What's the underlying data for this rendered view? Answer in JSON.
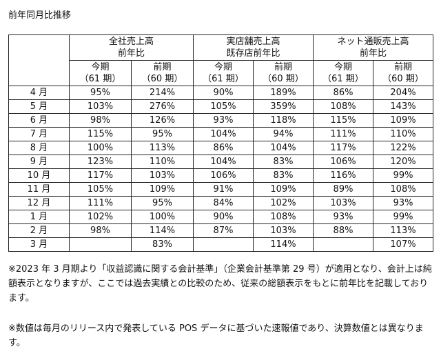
{
  "title": "前年同月比推移",
  "groups": [
    {
      "line1": "全社売上高",
      "line2": "前年比"
    },
    {
      "line1": "実店舗売上高",
      "line2": "既存店前年比"
    },
    {
      "line1": "ネット通販売上高",
      "line2": "前年比"
    }
  ],
  "sub_headers": [
    {
      "l1": "今期",
      "l2": "（61 期）"
    },
    {
      "l1": "前期",
      "l2": "（60 期）"
    },
    {
      "l1": "今期",
      "l2": "（61 期）"
    },
    {
      "l1": "前期",
      "l2": "（60 期）"
    },
    {
      "l1": "今期",
      "l2": "（61 期）"
    },
    {
      "l1": "前期",
      "l2": "（60 期）"
    }
  ],
  "rows": [
    {
      "month": "4 月",
      "values": [
        "95%",
        "214%",
        "90%",
        "189%",
        "86%",
        "204%"
      ]
    },
    {
      "month": "5 月",
      "values": [
        "103%",
        "276%",
        "105%",
        "359%",
        "108%",
        "143%"
      ]
    },
    {
      "month": "6 月",
      "values": [
        "98%",
        "126%",
        "93%",
        "118%",
        "115%",
        "109%"
      ]
    },
    {
      "month": "7 月",
      "values": [
        "115%",
        "95%",
        "104%",
        "94%",
        "111%",
        "110%"
      ]
    },
    {
      "month": "8 月",
      "values": [
        "100%",
        "113%",
        "86%",
        "104%",
        "117%",
        "122%"
      ]
    },
    {
      "month": "9 月",
      "values": [
        "123%",
        "110%",
        "104%",
        "83%",
        "106%",
        "120%"
      ]
    },
    {
      "month": "10 月",
      "values": [
        "117%",
        "103%",
        "106%",
        "83%",
        "116%",
        "99%"
      ]
    },
    {
      "month": "11 月",
      "values": [
        "105%",
        "109%",
        "91%",
        "109%",
        "89%",
        "108%"
      ]
    },
    {
      "month": "12 月",
      "values": [
        "111%",
        "95%",
        "84%",
        "102%",
        "103%",
        "93%"
      ]
    },
    {
      "month": "1 月",
      "values": [
        "102%",
        "100%",
        "90%",
        "108%",
        "93%",
        "99%"
      ]
    },
    {
      "month": "2 月",
      "values": [
        "98%",
        "114%",
        "87%",
        "103%",
        "88%",
        "113%"
      ]
    },
    {
      "month": "3 月",
      "values": [
        "",
        "83%",
        "",
        "114%",
        "",
        "107%"
      ]
    }
  ],
  "notes": [
    "※2023 年 3 月期より「収益認識に関する会計基準」（企業会計基準第 29 号）が適用となり、会計上は純額表示となりますが、ここでは過去実績との比較のため、従来の総額表示をもとに前年比を記載しております。",
    "※数値は毎月のリリース内で発表している POS データに基づいた速報値であり、決算数値とは異なります。"
  ]
}
